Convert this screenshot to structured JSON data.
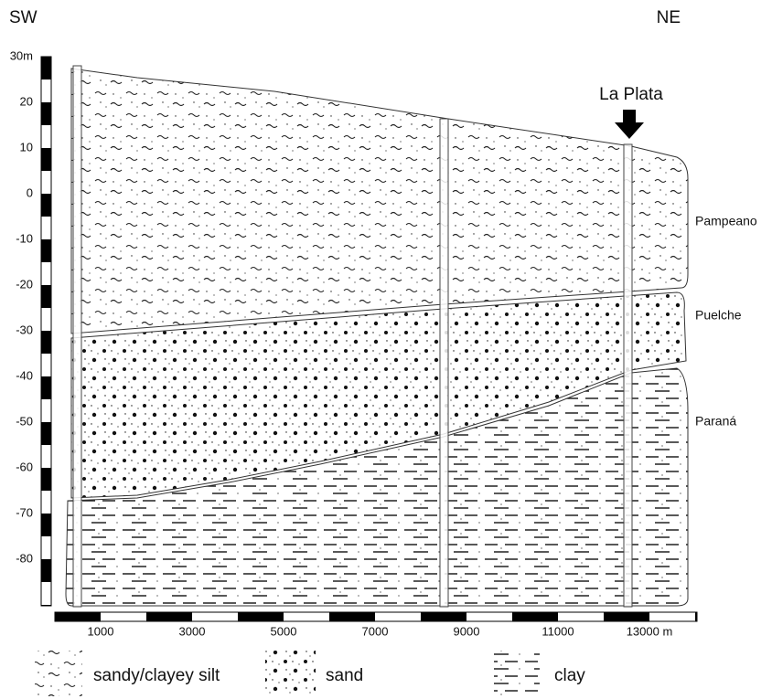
{
  "headings": {
    "left": "SW",
    "right": "NE"
  },
  "depth_axis": {
    "labels": [
      "30m",
      "20",
      "10",
      "0",
      "-10",
      "-20",
      "-30",
      "-40",
      "-50",
      "-60",
      "-70",
      "-80"
    ]
  },
  "distance_axis": {
    "labels": [
      "1000",
      "3000",
      "5000",
      "7000",
      "9000",
      "11000",
      "13000 m"
    ]
  },
  "site": "La Plata",
  "layers": [
    "Pampeano",
    "Puelche",
    "Paraná"
  ],
  "legend": [
    "sandy/clayey silt",
    "sand",
    "clay"
  ]
}
